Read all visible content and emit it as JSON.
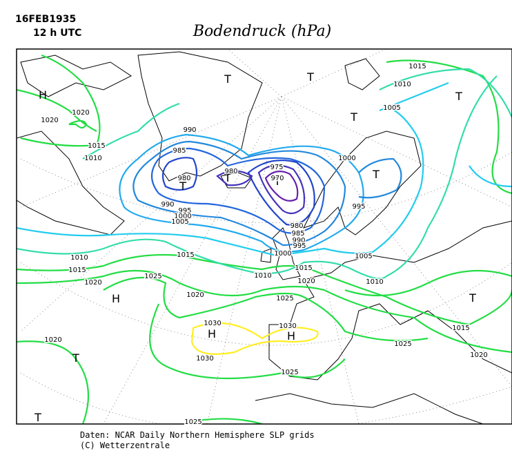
{
  "header": {
    "date": "16FEB1935",
    "time": "12 h UTC",
    "title": "Bodendruck (hPa)"
  },
  "centers": [
    "H",
    "T",
    "T",
    "T",
    "T",
    "T",
    "T",
    "T",
    "T",
    "H",
    "H",
    "H",
    "T",
    "T",
    "T"
  ],
  "isobar_labels": [
    1015,
    1010,
    1005,
    1020,
    1020,
    1015,
    1010,
    990,
    985,
    980,
    980,
    975,
    970,
    1000,
    995,
    990,
    995,
    1000,
    1005,
    980,
    985,
    990,
    995,
    1000,
    1005,
    1015,
    1010,
    1015,
    1010,
    1015,
    1020,
    1025,
    1020,
    1010,
    1020,
    1025,
    1030,
    1030,
    1030,
    1020,
    1025,
    1015,
    1020,
    1025,
    1025
  ],
  "footer": {
    "source": "Daten: NCAR Daily Northern Hemisphere SLP grids",
    "copyright": "(C) Wetterzentrale"
  }
}
